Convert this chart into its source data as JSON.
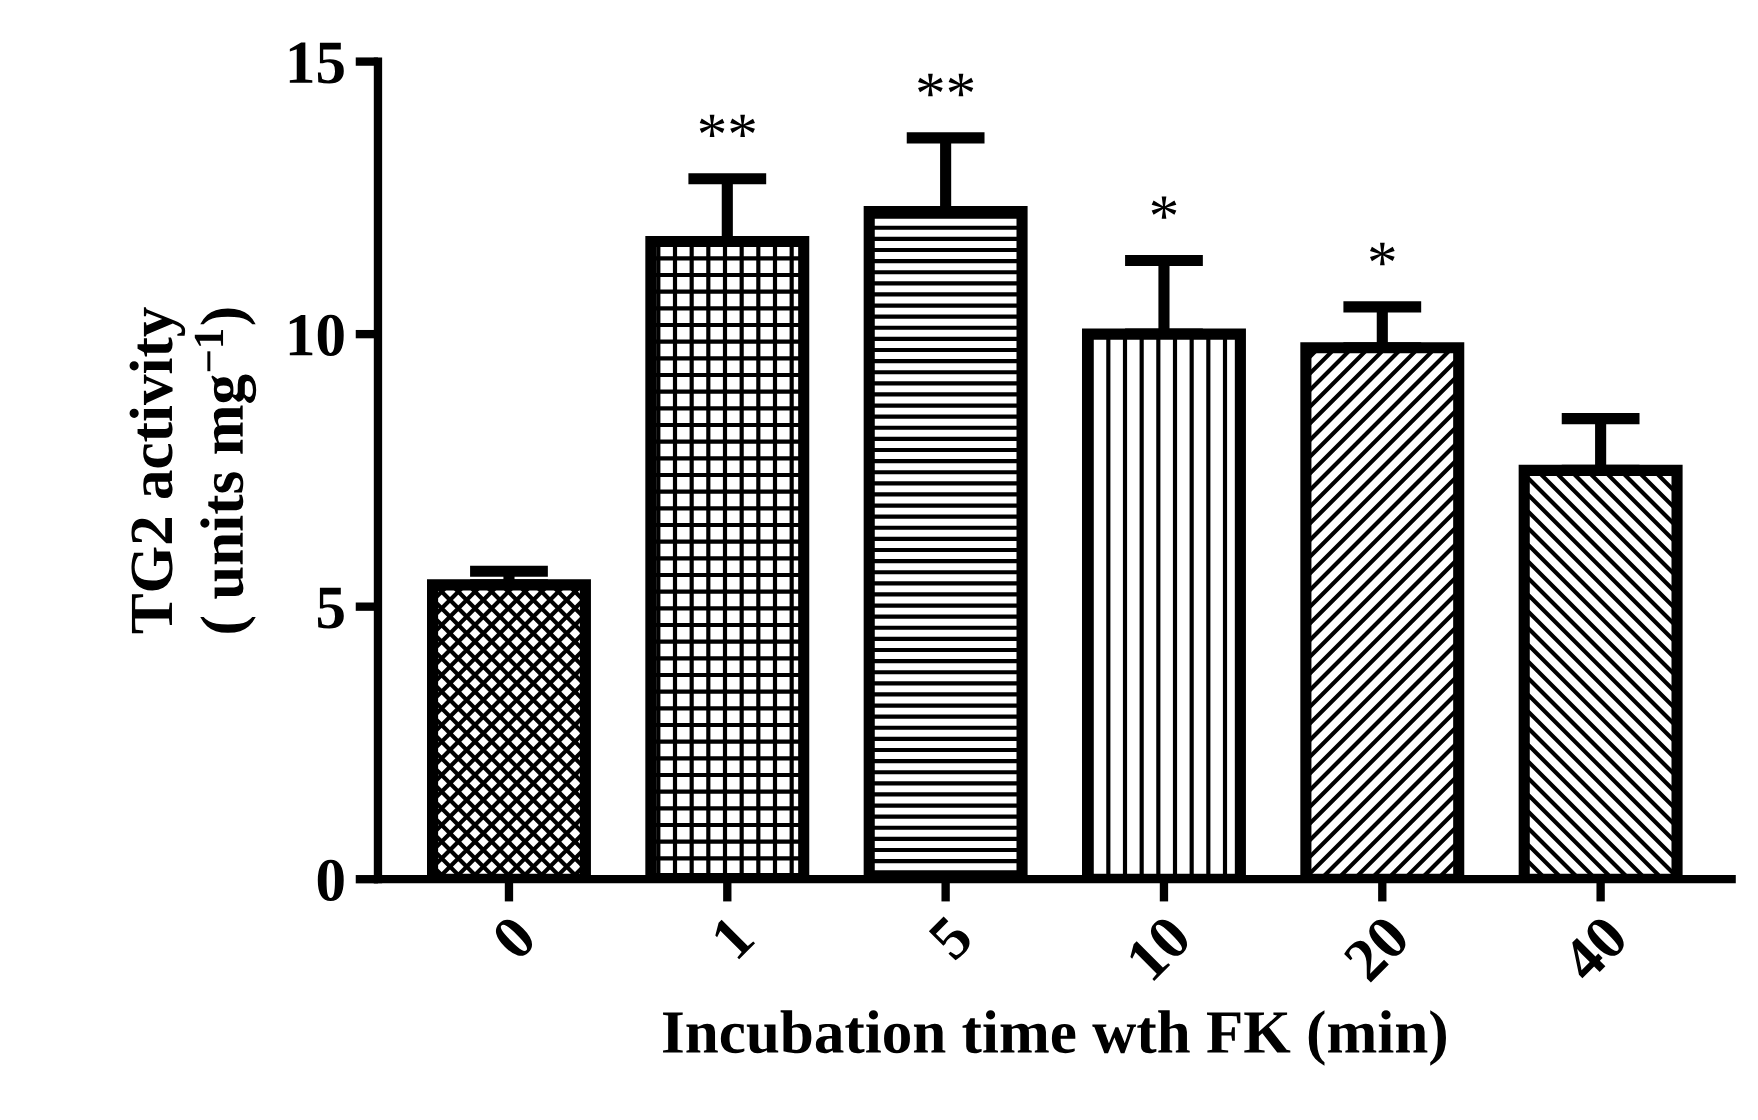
{
  "chart_data": {
    "type": "bar",
    "xlabel": "Incubation time wth FK (min)",
    "ylabel": "TG2 activity\n( units mg$^{−1}$)",
    "categories": [
      "0",
      "1",
      "5",
      "10",
      "20",
      "40"
    ],
    "values": [
      5.4,
      11.7,
      12.25,
      10.0,
      9.75,
      7.5
    ],
    "errors": [
      [
        5.4,
        5.65
      ],
      [
        11.7,
        12.85
      ],
      [
        12.25,
        13.6
      ],
      [
        10.0,
        11.35
      ],
      [
        9.75,
        10.5
      ],
      [
        7.5,
        8.45
      ]
    ],
    "color": "#000000",
    "ylim": [
      0,
      15
    ],
    "yticks": [
      0,
      5,
      10,
      15
    ],
    "grid": false,
    "annotations": [
      {
        "text": "**",
        "x": "1",
        "y": 12.85
      },
      {
        "text": "**",
        "x": "5",
        "y": 13.6
      },
      {
        "text": "*",
        "x": "10",
        "y": 11.35
      },
      {
        "text": "*",
        "x": "20",
        "y": 10.5
      }
    ]
  }
}
